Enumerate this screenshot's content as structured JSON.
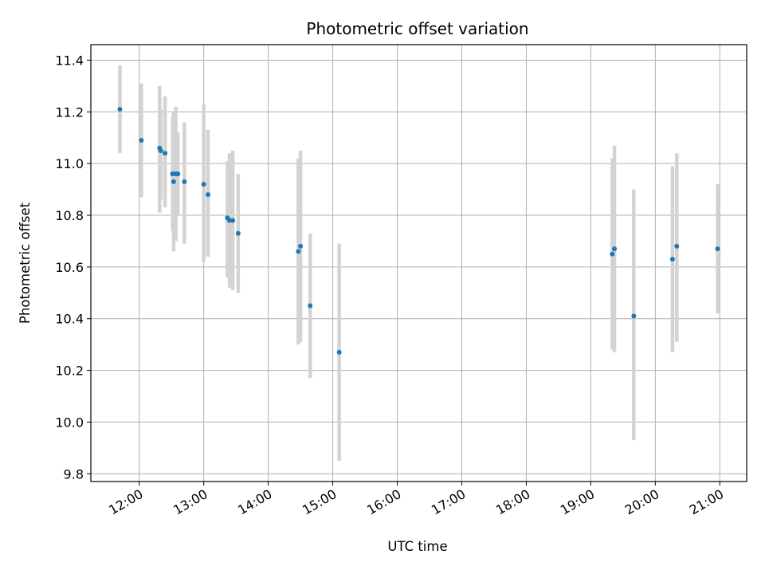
{
  "chart_data": {
    "type": "scatter",
    "title": "Photometric offset variation",
    "xlabel": "UTC time",
    "ylabel": "Photometric offset",
    "xlim": [
      "11:15",
      "21:25"
    ],
    "ylim": [
      9.77,
      11.46
    ],
    "xticks": [
      "12:00",
      "13:00",
      "14:00",
      "15:00",
      "16:00",
      "17:00",
      "18:00",
      "19:00",
      "20:00",
      "21:00"
    ],
    "yticks": [
      "9.8",
      "10.0",
      "10.2",
      "10.4",
      "10.6",
      "10.8",
      "11.0",
      "11.2",
      "11.4"
    ],
    "grid": true,
    "marker_color": "#1f77b4",
    "errorbar_color": "#d3d3d3",
    "points": [
      {
        "time": "11:42",
        "value": 11.21,
        "err_low": 11.04,
        "err_high": 11.38
      },
      {
        "time": "12:02",
        "value": 11.09,
        "err_low": 10.87,
        "err_high": 11.31
      },
      {
        "time": "12:19",
        "value": 11.06,
        "err_low": 10.81,
        "err_high": 11.3
      },
      {
        "time": "12:20",
        "value": 11.05,
        "err_low": 10.86,
        "err_high": 11.21
      },
      {
        "time": "12:24",
        "value": 11.04,
        "err_low": 10.83,
        "err_high": 11.26
      },
      {
        "time": "12:31",
        "value": 10.96,
        "err_low": 10.74,
        "err_high": 11.18
      },
      {
        "time": "12:32",
        "value": 10.93,
        "err_low": 10.66,
        "err_high": 11.2
      },
      {
        "time": "12:34",
        "value": 10.96,
        "err_low": 10.7,
        "err_high": 11.22
      },
      {
        "time": "12:36",
        "value": 10.96,
        "err_low": 10.8,
        "err_high": 11.12
      },
      {
        "time": "12:42",
        "value": 10.93,
        "err_low": 10.69,
        "err_high": 11.16
      },
      {
        "time": "13:00",
        "value": 10.92,
        "err_low": 10.62,
        "err_high": 11.23
      },
      {
        "time": "13:04",
        "value": 10.88,
        "err_low": 10.64,
        "err_high": 11.13
      },
      {
        "time": "13:22",
        "value": 10.79,
        "err_low": 10.56,
        "err_high": 11.01
      },
      {
        "time": "13:24",
        "value": 10.78,
        "err_low": 10.52,
        "err_high": 11.04
      },
      {
        "time": "13:27",
        "value": 10.78,
        "err_low": 10.51,
        "err_high": 11.05
      },
      {
        "time": "13:32",
        "value": 10.73,
        "err_low": 10.5,
        "err_high": 10.96
      },
      {
        "time": "14:28",
        "value": 10.66,
        "err_low": 10.3,
        "err_high": 11.02
      },
      {
        "time": "14:30",
        "value": 10.68,
        "err_low": 10.31,
        "err_high": 11.05
      },
      {
        "time": "14:39",
        "value": 10.45,
        "err_low": 10.17,
        "err_high": 10.73
      },
      {
        "time": "15:06",
        "value": 10.27,
        "err_low": 9.85,
        "err_high": 10.69
      },
      {
        "time": "19:20",
        "value": 10.65,
        "err_low": 10.28,
        "err_high": 11.02
      },
      {
        "time": "19:22",
        "value": 10.67,
        "err_low": 10.27,
        "err_high": 11.07
      },
      {
        "time": "19:40",
        "value": 10.41,
        "err_low": 9.93,
        "err_high": 10.9
      },
      {
        "time": "20:16",
        "value": 10.63,
        "err_low": 10.27,
        "err_high": 10.99
      },
      {
        "time": "20:20",
        "value": 10.68,
        "err_low": 10.31,
        "err_high": 11.04
      },
      {
        "time": "20:58",
        "value": 10.67,
        "err_low": 10.42,
        "err_high": 10.92
      }
    ]
  }
}
